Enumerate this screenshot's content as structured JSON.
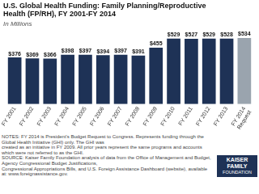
{
  "chart_data": {
    "type": "bar",
    "title": "U.S. Global Health Funding: Family Planning/Reproductive\nHealth (FP/RH), FY 2001-FY 2014",
    "subtitle": "In Millions",
    "categories": [
      "FY 2001",
      "FY 2002",
      "FY 2003",
      "FY 2004",
      "FY 2005",
      "FY 2006",
      "FY 2007",
      "FY 2008",
      "FY 2009",
      "FY 2010",
      "FY 2011",
      "FY 2012",
      "FY 2013",
      "FY 2014\nRequest"
    ],
    "values": [
      376,
      369,
      366,
      398,
      397,
      394,
      397,
      391,
      455,
      529,
      527,
      529,
      528,
      534
    ],
    "value_labels": [
      "$376",
      "$369",
      "$366",
      "$398",
      "$397",
      "$394",
      "$397",
      "$391",
      "$455",
      "$529",
      "$527",
      "$529",
      "$528",
      "$534"
    ],
    "data_labels": true,
    "colors": [
      "#1e3256",
      "#1e3256",
      "#1e3256",
      "#1e3256",
      "#1e3256",
      "#1e3256",
      "#1e3256",
      "#1e3256",
      "#1e3256",
      "#1e3256",
      "#1e3256",
      "#1e3256",
      "#1e3256",
      "#9aa4ae"
    ],
    "ylim": [
      0,
      590
    ],
    "tick_labels": "x",
    "grid": false,
    "notes": [
      "NOTES: FY 2014 is President's Budget Request to Congress. Represents funding through the Global Health Initiative (GHI) only. The GHI was",
      "created as an initiative in FY 2009.  All prior years represent the same programs and accounts which were not referred to as the GHI.",
      "SOURCE: Kaiser Family Foundation analysis of data from the Office of Management and Budget, Agency Congressional Budget Justifications,",
      "Congressional Appropriations Bills, and U.S. Foreign Assistance Dashboard (website), available at: www.foreignassistance.gov."
    ],
    "logo": [
      "KAISER",
      "FAMILY",
      "FOUNDATION"
    ]
  }
}
